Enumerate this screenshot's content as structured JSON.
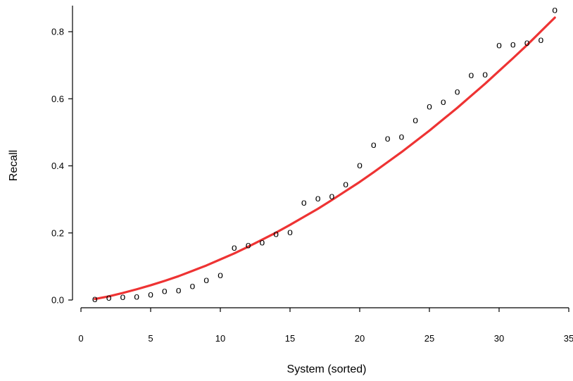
{
  "chart_data": {
    "type": "scatter",
    "title": "",
    "xlabel": "System (sorted)",
    "ylabel": "Recall",
    "xlim": [
      0,
      35
    ],
    "ylim": [
      0,
      0.87
    ],
    "xticks": [
      0,
      5,
      10,
      15,
      20,
      25,
      30,
      35
    ],
    "yticks": [
      0.0,
      0.2,
      0.4,
      0.6,
      0.8
    ],
    "xtick_labels": [
      "0",
      "5",
      "10",
      "15",
      "20",
      "25",
      "30",
      "35"
    ],
    "ytick_labels": [
      "0.0",
      "0.2",
      "0.4",
      "0.6",
      "0.8"
    ],
    "grid": false,
    "point_marker": "o",
    "series": [
      {
        "type": "scatter",
        "marker": "o",
        "color": "#000000",
        "x": [
          1,
          2,
          3,
          4,
          5,
          6,
          7,
          8,
          9,
          10,
          11,
          12,
          13,
          14,
          15,
          16,
          17,
          18,
          19,
          20,
          21,
          22,
          23,
          24,
          25,
          26,
          27,
          28,
          29,
          30,
          31,
          32,
          33,
          34
        ],
        "y": [
          0.004,
          0.008,
          0.011,
          0.012,
          0.018,
          0.028,
          0.03,
          0.043,
          0.061,
          0.076,
          0.158,
          0.165,
          0.173,
          0.198,
          0.204,
          0.292,
          0.304,
          0.311,
          0.346,
          0.403,
          0.464,
          0.483,
          0.488,
          0.538,
          0.579,
          0.592,
          0.623,
          0.672,
          0.674,
          0.761,
          0.763,
          0.769,
          0.777,
          0.866
        ]
      },
      {
        "type": "line",
        "color": "#ee3333",
        "x": [
          1,
          2,
          3,
          4,
          5,
          6,
          7,
          8,
          9,
          10,
          11,
          12,
          13,
          14,
          15,
          16,
          17,
          18,
          19,
          20,
          21,
          22,
          23,
          24,
          25,
          26,
          27,
          28,
          29,
          30,
          31,
          32,
          33,
          34
        ],
        "y": [
          0.003,
          0.011,
          0.021,
          0.032,
          0.044,
          0.057,
          0.071,
          0.087,
          0.103,
          0.121,
          0.139,
          0.159,
          0.18,
          0.201,
          0.224,
          0.248,
          0.272,
          0.298,
          0.325,
          0.352,
          0.381,
          0.411,
          0.441,
          0.473,
          0.505,
          0.539,
          0.573,
          0.609,
          0.645,
          0.683,
          0.721,
          0.76,
          0.801,
          0.842
        ]
      }
    ]
  }
}
